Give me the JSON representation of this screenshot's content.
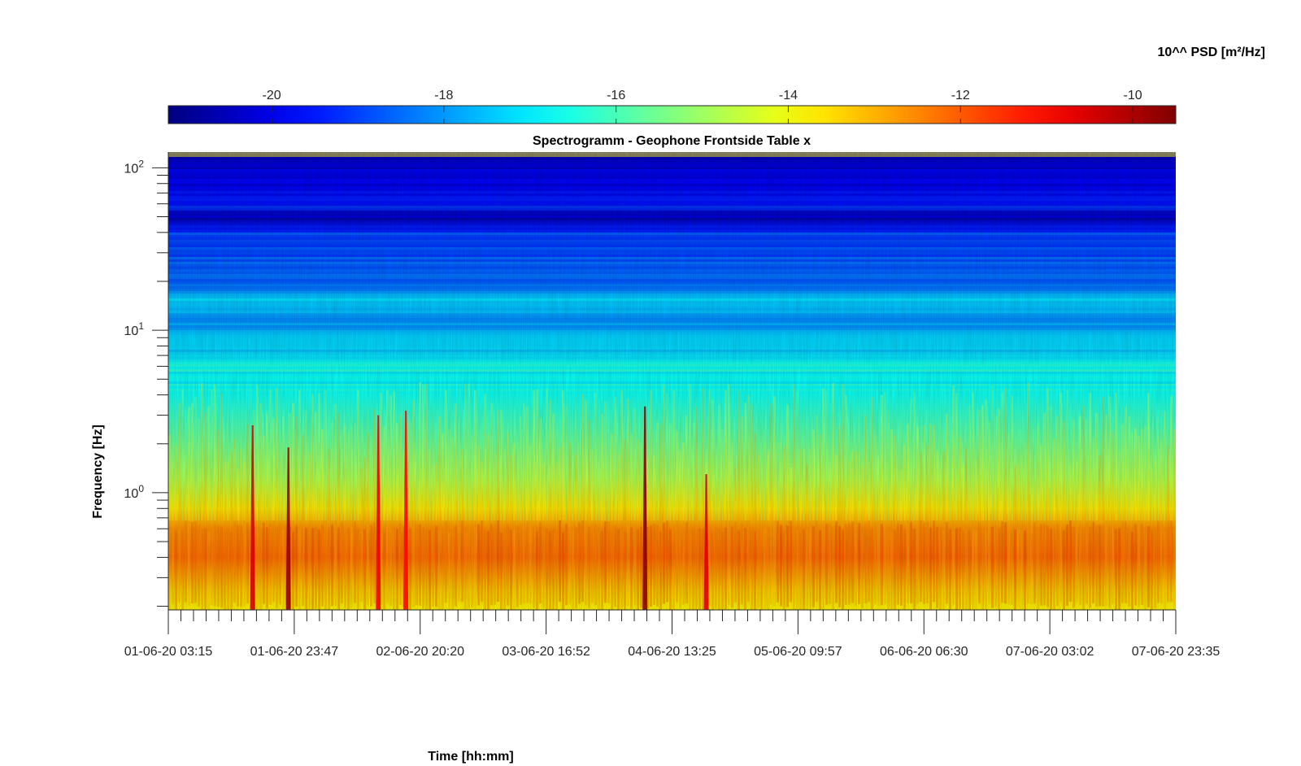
{
  "chart_data": {
    "type": "heatmap",
    "title": "Spectrogramm - Geophone Frontside Table x",
    "xlabel": "Time [hh:mm]",
    "ylabel": "Frequency [Hz]",
    "yscale": "log",
    "ylim": [
      0.19,
      125
    ],
    "y_ticks": [
      {
        "base": "10",
        "exp": "2",
        "value": 100
      },
      {
        "base": "10",
        "exp": "1",
        "value": 10
      },
      {
        "base": "10",
        "exp": "0",
        "value": 1
      }
    ],
    "x_ticks": [
      "01-06-20 03:15",
      "01-06-20 23:47",
      "02-06-20 20:20",
      "03-06-20 16:52",
      "04-06-20 13:25",
      "05-06-20 09:57",
      "06-06-20 06:30",
      "07-06-20 03:02",
      "07-06-20 23:35"
    ],
    "colorbar": {
      "label": "10^^ PSD [m²/Hz]",
      "range": [
        -21.2,
        -9.5
      ],
      "ticks": [
        -20,
        -18,
        -16,
        -14,
        -12,
        -10
      ],
      "colormap": "jet"
    },
    "frequency_profile": [
      {
        "f": 120,
        "v": -20.3
      },
      {
        "f": 80,
        "v": -19.9
      },
      {
        "f": 60,
        "v": -19.3
      },
      {
        "f": 50,
        "v": -20.6
      },
      {
        "f": 40,
        "v": -19.0
      },
      {
        "f": 30,
        "v": -18.8
      },
      {
        "f": 20,
        "v": -18.5
      },
      {
        "f": 15,
        "v": -17.3
      },
      {
        "f": 12,
        "v": -18.0
      },
      {
        "f": 9,
        "v": -17.6
      },
      {
        "f": 6,
        "v": -16.6
      },
      {
        "f": 4.5,
        "v": -16.8
      },
      {
        "f": 3,
        "v": -16.2
      },
      {
        "f": 2,
        "v": -15.6
      },
      {
        "f": 1.2,
        "v": -14.8
      },
      {
        "f": 0.8,
        "v": -13.6
      },
      {
        "f": 0.6,
        "v": -12.6
      },
      {
        "f": 0.4,
        "v": -12.2
      },
      {
        "f": 0.25,
        "v": -13.4
      },
      {
        "f": 0.19,
        "v": -13.8
      }
    ],
    "events": [
      {
        "time": "01-06-20 17:00",
        "f_max": 2.6,
        "v": -10.5
      },
      {
        "time": "01-06-20 22:50",
        "f_max": 1.9,
        "v": -9.8
      },
      {
        "time": "02-06-20 13:30",
        "f_max": 3.0,
        "v": -10.8
      },
      {
        "time": "02-06-20 18:00",
        "f_max": 3.2,
        "v": -11.0
      },
      {
        "time": "04-06-20 09:00",
        "f_max": 3.4,
        "v": -9.6
      },
      {
        "time": "04-06-20 19:00",
        "f_max": 1.3,
        "v": -10.6
      }
    ]
  }
}
